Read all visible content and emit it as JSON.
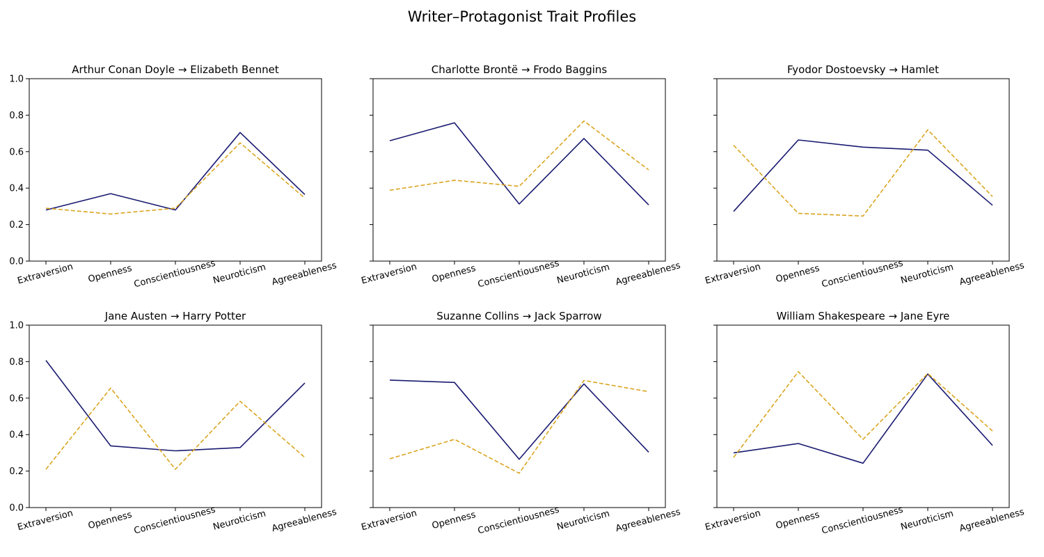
{
  "figure": {
    "title": "Writer–Protagonist Trait Profiles"
  },
  "colors": {
    "writer": "#191970",
    "protagonist": "#DAA520"
  },
  "chart_data": [
    {
      "type": "line",
      "title": "Arthur Conan Doyle → Elizabeth Bennet",
      "categories": [
        "Extraversion",
        "Openness",
        "Conscientiousness",
        "Neuroticism",
        "Agreeableness"
      ],
      "ylim": [
        0,
        1
      ],
      "yticks": [
        "0.0",
        "0.2",
        "0.4",
        "0.6",
        "0.8",
        "1.0"
      ],
      "series": [
        {
          "style": "solid",
          "values": [
            0.28,
            0.37,
            0.28,
            0.705,
            0.365
          ]
        },
        {
          "style": "dashed",
          "values": [
            0.29,
            0.258,
            0.29,
            0.648,
            0.345
          ]
        }
      ]
    },
    {
      "type": "line",
      "title": "Charlotte Brontë → Frodo Baggins",
      "categories": [
        "Extraversion",
        "Openness",
        "Conscientiousness",
        "Neuroticism",
        "Agreeableness"
      ],
      "ylim": [
        0,
        1
      ],
      "yticks": [
        "",
        "",
        "",
        "",
        "",
        ""
      ],
      "series": [
        {
          "style": "solid",
          "values": [
            0.66,
            0.758,
            0.313,
            0.672,
            0.308
          ]
        },
        {
          "style": "dashed",
          "values": [
            0.388,
            0.443,
            0.41,
            0.768,
            0.5
          ]
        }
      ]
    },
    {
      "type": "line",
      "title": "Fyodor Dostoevsky → Hamlet",
      "categories": [
        "Extraversion",
        "Openness",
        "Conscientiousness",
        "Neuroticism",
        "Agreeableness"
      ],
      "ylim": [
        0,
        1
      ],
      "yticks": [
        "",
        "",
        "",
        "",
        "",
        ""
      ],
      "series": [
        {
          "style": "solid",
          "values": [
            0.272,
            0.664,
            0.625,
            0.608,
            0.306
          ]
        },
        {
          "style": "dashed",
          "values": [
            0.635,
            0.262,
            0.247,
            0.72,
            0.354
          ]
        }
      ]
    },
    {
      "type": "line",
      "title": "Jane Austen → Harry Potter",
      "categories": [
        "Extraversion",
        "Openness",
        "Conscientiousness",
        "Neuroticism",
        "Agreeableness"
      ],
      "ylim": [
        0,
        1
      ],
      "yticks": [
        "0.0",
        "0.2",
        "0.4",
        "0.6",
        "0.8",
        "1.0"
      ],
      "series": [
        {
          "style": "solid",
          "values": [
            0.807,
            0.338,
            0.311,
            0.329,
            0.683
          ]
        },
        {
          "style": "dashed",
          "values": [
            0.21,
            0.655,
            0.21,
            0.583,
            0.275
          ]
        }
      ]
    },
    {
      "type": "line",
      "title": "Suzanne Collins → Jack Sparrow",
      "categories": [
        "Extraversion",
        "Openness",
        "Conscientiousness",
        "Neuroticism",
        "Agreeableness"
      ],
      "ylim": [
        0,
        1
      ],
      "yticks": [
        "",
        "",
        "",
        "",
        "",
        ""
      ],
      "series": [
        {
          "style": "solid",
          "values": [
            0.699,
            0.686,
            0.265,
            0.678,
            0.304
          ]
        },
        {
          "style": "dashed",
          "values": [
            0.267,
            0.374,
            0.188,
            0.697,
            0.635
          ]
        }
      ]
    },
    {
      "type": "line",
      "title": "William Shakespeare → Jane Eyre",
      "categories": [
        "Extraversion",
        "Openness",
        "Conscientiousness",
        "Neuroticism",
        "Agreeableness"
      ],
      "ylim": [
        0,
        1
      ],
      "yticks": [
        "",
        "",
        "",
        "",
        "",
        ""
      ],
      "series": [
        {
          "style": "solid",
          "values": [
            0.3,
            0.351,
            0.243,
            0.732,
            0.341
          ]
        },
        {
          "style": "dashed",
          "values": [
            0.275,
            0.745,
            0.374,
            0.735,
            0.42
          ]
        }
      ]
    }
  ]
}
